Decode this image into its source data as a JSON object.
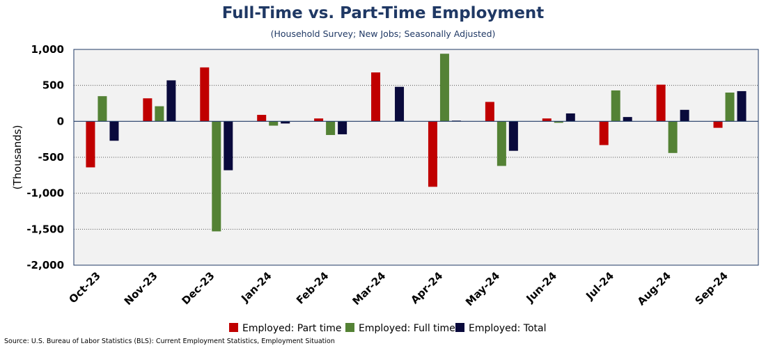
{
  "title": "Full-Time vs. Part-Time Employment",
  "subtitle": "(Household Survey; New Jobs; Seasonally Adjusted)",
  "source": "Source: U.S. Bureau of Labor Statistics (BLS): Current Employment Statistics, Employment Situation",
  "colors": {
    "part_time": "#c00000",
    "full_time": "#548235",
    "total": "#0a0a3c",
    "plot_bg": "#f2f2f2",
    "axis": "#1f3864"
  },
  "chart_data": {
    "type": "bar",
    "title": "Full-Time vs. Part-Time Employment",
    "subtitle": "(Household Survey; New Jobs; Seasonally Adjusted)",
    "xlabel": "",
    "ylabel": "(Thousands)",
    "ylim": [
      -2000,
      1000
    ],
    "yticks": [
      1000,
      500,
      0,
      -500,
      -1000,
      -1500,
      -2000
    ],
    "ytick_labels": [
      "1,000",
      "500",
      "0",
      "-500",
      "-1,000",
      "-1,500",
      "-2,000"
    ],
    "grid": true,
    "legend": "bottom",
    "categories": [
      "Oct-23",
      "Nov-23",
      "Dec-23",
      "Jan-24",
      "Feb-24",
      "Mar-24",
      "Apr-24",
      "May-24",
      "Jun-24",
      "Jul-24",
      "Aug-24",
      "Sep-24"
    ],
    "series": [
      {
        "name": "Employed: Part time",
        "color": "#c00000",
        "values": [
          -640,
          320,
          750,
          90,
          40,
          680,
          -910,
          270,
          40,
          -330,
          510,
          -90
        ]
      },
      {
        "name": "Employed: Full time",
        "color": "#548235",
        "values": [
          350,
          210,
          -1530,
          -60,
          -190,
          0,
          940,
          -620,
          -20,
          430,
          -440,
          400
        ]
      },
      {
        "name": "Employed: Total",
        "color": "#0a0a3c",
        "values": [
          -270,
          570,
          -680,
          -30,
          -180,
          480,
          10,
          -410,
          110,
          60,
          160,
          420
        ]
      }
    ]
  }
}
